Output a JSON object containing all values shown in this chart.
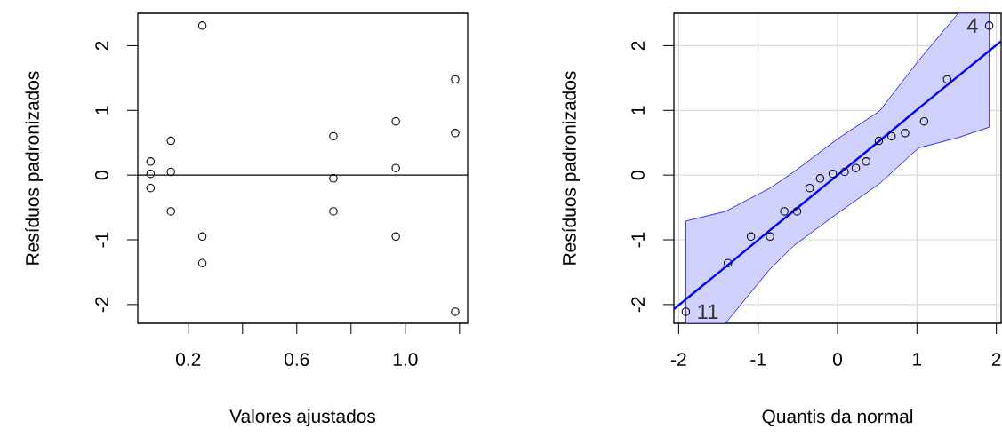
{
  "chart_data": [
    {
      "type": "scatter",
      "xlabel": "Valores ajustados",
      "ylabel": "Resíduos padronizados",
      "x": [
        0.061,
        0.061,
        0.061,
        0.136,
        0.136,
        0.136,
        0.252,
        0.252,
        0.252,
        0.735,
        0.735,
        0.735,
        0.965,
        0.965,
        0.965,
        1.184,
        1.184,
        1.184
      ],
      "values": [
        0.21,
        0.02,
        -0.2,
        0.53,
        0.05,
        -0.56,
        2.31,
        -0.95,
        -1.36,
        0.6,
        -0.05,
        -0.56,
        0.83,
        0.11,
        -0.95,
        1.48,
        0.65,
        -2.11
      ],
      "color": "#000000",
      "marker": "circle",
      "grid": false,
      "xlim": [
        0.014,
        1.23
      ],
      "xticks": [
        {
          "value": 0.2,
          "label": "0.2"
        },
        {
          "value": 0.4,
          "label": null
        },
        {
          "value": 0.6,
          "label": "0.6"
        },
        {
          "value": 0.8,
          "label": null
        },
        {
          "value": 1.0,
          "label": "1.0"
        },
        {
          "value": 1.2,
          "label": null
        }
      ],
      "ylim": [
        -2.29,
        2.5
      ],
      "yticks": [
        -2,
        -1,
        0,
        1,
        2
      ],
      "ref_lines": [
        {
          "axis": "y",
          "value": 0,
          "color": "#000000"
        }
      ]
    },
    {
      "type": "scatter",
      "xlabel": "Quantis da normal",
      "ylabel": "Resíduos padronizados",
      "marker": "circle",
      "grid": true,
      "series": [
        {
          "type": "scatter",
          "color": "#000000",
          "x": [
            -1.91,
            -1.38,
            -1.09,
            -0.85,
            -0.67,
            -0.51,
            -0.35,
            -0.22,
            -0.06,
            0.09,
            0.23,
            0.36,
            0.52,
            0.68,
            0.85,
            1.09,
            1.38,
            1.91
          ],
          "values": [
            -2.11,
            -1.36,
            -0.95,
            -0.95,
            -0.56,
            -0.56,
            -0.2,
            -0.05,
            0.02,
            0.05,
            0.11,
            0.21,
            0.53,
            0.6,
            0.65,
            0.83,
            1.48,
            2.31
          ]
        },
        {
          "type": "line",
          "marker": "none",
          "color": "#0000ff",
          "x": [
            -2.06,
            -1.91,
            -1.41,
            -0.85,
            -0.55,
            0,
            0.53,
            1.02,
            1.52,
            1.91,
            2.06
          ],
          "values": [
            -2.07,
            -1.92,
            -1.42,
            -0.85,
            -0.55,
            0,
            0.53,
            1.03,
            1.53,
            1.92,
            2.07
          ],
          "upper": [
            null,
            -0.71,
            -0.56,
            -0.2,
            0.05,
            0.56,
            0.99,
            1.77,
            2.5,
            2.5,
            null
          ],
          "lower": [
            null,
            -2.29,
            -2.29,
            -1.45,
            -1.09,
            -0.59,
            -0.13,
            0.42,
            0.58,
            0.74,
            null
          ]
        }
      ],
      "xlim": [
        -2.06,
        2.06
      ],
      "xticks": [
        -2,
        -1,
        0,
        1,
        2
      ],
      "ylim": [
        -2.29,
        2.5
      ],
      "yticks": [
        -2,
        -1,
        0,
        1,
        2
      ],
      "annotations": [
        {
          "text": "4",
          "x": 1.91,
          "y": 2.31
        },
        {
          "text": "11",
          "x": -1.91,
          "y": -2.11
        }
      ]
    }
  ]
}
